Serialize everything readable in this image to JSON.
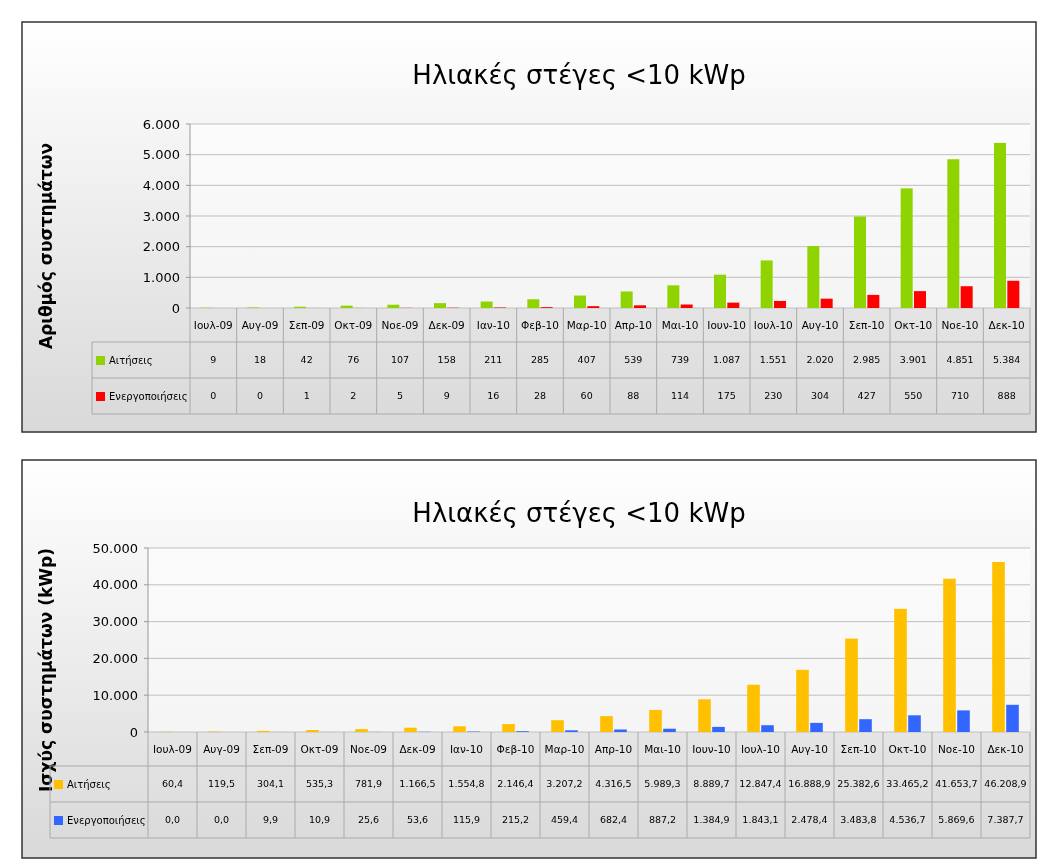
{
  "chart_data": [
    {
      "type": "bar",
      "title": "Ηλιακές στέγες <10 kWp",
      "ylabel": "Αριθμός συστημάτων",
      "categories": [
        "Ιουλ-09",
        "Αυγ-09",
        "Σεπ-09",
        "Οκτ-09",
        "Νοε-09",
        "Δεκ-09",
        "Ιαν-10",
        "Φεβ-10",
        "Μαρ-10",
        "Απρ-10",
        "Μαι-10",
        "Ιουν-10",
        "Ιουλ-10",
        "Αυγ-10",
        "Σεπ-10",
        "Οκτ-10",
        "Νοε-10",
        "Δεκ-10"
      ],
      "series": [
        {
          "name": "Αιτήσεις",
          "color": "#8fd400",
          "values": [
            9,
            18,
            42,
            76,
            107,
            158,
            211,
            285,
            407,
            539,
            739,
            1087,
            1551,
            2020,
            2985,
            3901,
            4851,
            5384
          ],
          "value_labels": [
            "9",
            "18",
            "42",
            "76",
            "107",
            "158",
            "211",
            "285",
            "407",
            "539",
            "739",
            "1.087",
            "1.551",
            "2.020",
            "2.985",
            "3.901",
            "4.851",
            "5.384"
          ]
        },
        {
          "name": "Ενεργοποιήσεις",
          "color": "#ff0000",
          "values": [
            0,
            0,
            1,
            2,
            5,
            9,
            16,
            28,
            60,
            88,
            114,
            175,
            230,
            304,
            427,
            550,
            710,
            888
          ],
          "value_labels": [
            "0",
            "0",
            "1",
            "2",
            "5",
            "9",
            "16",
            "28",
            "60",
            "88",
            "114",
            "175",
            "230",
            "304",
            "427",
            "550",
            "710",
            "888"
          ]
        }
      ],
      "ylim": [
        0,
        6000
      ],
      "yticks": [
        {
          "value": 0,
          "label": "0"
        },
        {
          "value": 1000,
          "label": "1.000"
        },
        {
          "value": 2000,
          "label": "2.000"
        },
        {
          "value": 3000,
          "label": "3.000"
        },
        {
          "value": 4000,
          "label": "4.000"
        },
        {
          "value": 5000,
          "label": "5.000"
        },
        {
          "value": 6000,
          "label": "6.000"
        }
      ],
      "grid": "y",
      "legend": "bottom"
    },
    {
      "type": "bar",
      "title": "Ηλιακές στέγες <10 kWp",
      "ylabel": "Ισχύς συστημάτων (kWp)",
      "categories": [
        "Ιουλ-09",
        "Αυγ-09",
        "Σεπ-09",
        "Οκτ-09",
        "Νοε-09",
        "Δεκ-09",
        "Ιαν-10",
        "Φεβ-10",
        "Μαρ-10",
        "Απρ-10",
        "Μαι-10",
        "Ιουν-10",
        "Ιουλ-10",
        "Αυγ-10",
        "Σεπ-10",
        "Οκτ-10",
        "Νοε-10",
        "Δεκ-10"
      ],
      "series": [
        {
          "name": "Αιτήσεις",
          "color": "#ffc000",
          "values": [
            60.4,
            119.5,
            304.1,
            535.3,
            781.9,
            1166.5,
            1554.8,
            2146.4,
            3207.2,
            4316.5,
            5989.3,
            8889.7,
            12847.4,
            16888.9,
            25382.6,
            33465.2,
            41653.7,
            46208.9
          ],
          "value_labels": [
            "60,4",
            "119,5",
            "304,1",
            "535,3",
            "781,9",
            "1.166,5",
            "1.554,8",
            "2.146,4",
            "3.207,2",
            "4.316,5",
            "5.989,3",
            "8.889,7",
            "12.847,4",
            "16.888,9",
            "25.382,6",
            "33.465,2",
            "41.653,7",
            "46.208,9"
          ]
        },
        {
          "name": "Ενεργοποιήσεις",
          "color": "#3366ff",
          "values": [
            0.0,
            0.0,
            9.9,
            10.9,
            25.6,
            53.6,
            115.9,
            215.2,
            459.4,
            682.4,
            887.2,
            1384.9,
            1843.1,
            2478.4,
            3483.8,
            4536.7,
            5869.6,
            7387.7
          ],
          "value_labels": [
            "0,0",
            "0,0",
            "9,9",
            "10,9",
            "25,6",
            "53,6",
            "115,9",
            "215,2",
            "459,4",
            "682,4",
            "887,2",
            "1.384,9",
            "1.843,1",
            "2.478,4",
            "3.483,8",
            "4.536,7",
            "5.869,6",
            "7.387,7"
          ]
        }
      ],
      "ylim": [
        0,
        50000
      ],
      "yticks": [
        {
          "value": 0,
          "label": "0"
        },
        {
          "value": 10000,
          "label": "10.000"
        },
        {
          "value": 20000,
          "label": "20.000"
        },
        {
          "value": 30000,
          "label": "30.000"
        },
        {
          "value": 40000,
          "label": "40.000"
        },
        {
          "value": 50000,
          "label": "50.000"
        }
      ],
      "grid": "y",
      "legend": "bottom"
    }
  ]
}
